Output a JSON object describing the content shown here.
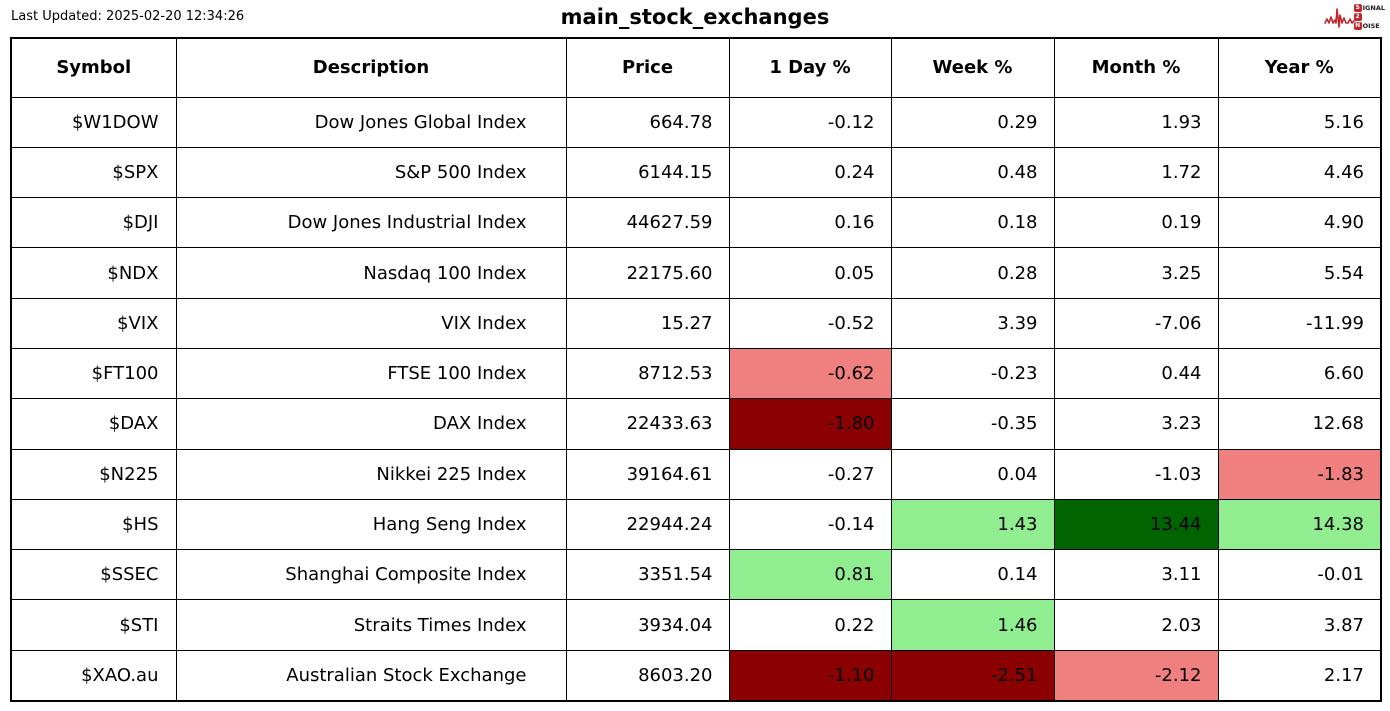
{
  "header": {
    "last_updated": "Last Updated: 2025-02-20 12:34:26",
    "title": "main_stock_exchanges",
    "logo": {
      "color": "#c0272d",
      "words": [
        {
          "boxed": "S",
          "rest": "IGNAL"
        },
        {
          "boxed": "2",
          "rest": ""
        },
        {
          "boxed": "N",
          "rest": "OISE"
        }
      ]
    }
  },
  "chart_data": {
    "type": "table",
    "title": "main_stock_exchanges",
    "columns": [
      "Symbol",
      "Description",
      "Price",
      "1 Day %",
      "Week %",
      "Month %",
      "Year %"
    ],
    "highlight_colors": {
      "light_red": "#f08080",
      "dark_red": "#8b0000",
      "light_green": "#90ee90",
      "dark_green": "#006400"
    },
    "rows": [
      {
        "symbol": "$W1DOW",
        "description": "Dow Jones Global Index",
        "price": 664.78,
        "day_pct": -0.12,
        "week_pct": 0.29,
        "month_pct": 1.93,
        "year_pct": 5.16,
        "bg": {}
      },
      {
        "symbol": "$SPX",
        "description": "S&P 500 Index",
        "price": 6144.15,
        "day_pct": 0.24,
        "week_pct": 0.48,
        "month_pct": 1.72,
        "year_pct": 4.46,
        "bg": {}
      },
      {
        "symbol": "$DJI",
        "description": "Dow Jones Industrial Index",
        "price": 44627.59,
        "day_pct": 0.16,
        "week_pct": 0.18,
        "month_pct": 0.19,
        "year_pct": 4.9,
        "bg": {}
      },
      {
        "symbol": "$NDX",
        "description": "Nasdaq 100 Index",
        "price": 22175.6,
        "day_pct": 0.05,
        "week_pct": 0.28,
        "month_pct": 3.25,
        "year_pct": 5.54,
        "bg": {}
      },
      {
        "symbol": "$VIX",
        "description": "VIX Index",
        "price": 15.27,
        "day_pct": -0.52,
        "week_pct": 3.39,
        "month_pct": -7.06,
        "year_pct": -11.99,
        "bg": {}
      },
      {
        "symbol": "$FT100",
        "description": "FTSE 100 Index",
        "price": 8712.53,
        "day_pct": -0.62,
        "week_pct": -0.23,
        "month_pct": 0.44,
        "year_pct": 6.6,
        "bg": {
          "day": "light_red"
        }
      },
      {
        "symbol": "$DAX",
        "description": "DAX Index",
        "price": 22433.63,
        "day_pct": -1.8,
        "week_pct": -0.35,
        "month_pct": 3.23,
        "year_pct": 12.68,
        "bg": {
          "day": "dark_red"
        }
      },
      {
        "symbol": "$N225",
        "description": "Nikkei 225 Index",
        "price": 39164.61,
        "day_pct": -0.27,
        "week_pct": 0.04,
        "month_pct": -1.03,
        "year_pct": -1.83,
        "bg": {
          "year": "light_red"
        }
      },
      {
        "symbol": "$HS",
        "description": "Hang Seng Index",
        "price": 22944.24,
        "day_pct": -0.14,
        "week_pct": 1.43,
        "month_pct": 13.44,
        "year_pct": 14.38,
        "bg": {
          "week": "light_green",
          "month": "dark_green",
          "year": "light_green"
        }
      },
      {
        "symbol": "$SSEC",
        "description": "Shanghai Composite Index",
        "price": 3351.54,
        "day_pct": 0.81,
        "week_pct": 0.14,
        "month_pct": 3.11,
        "year_pct": -0.01,
        "bg": {
          "day": "light_green"
        }
      },
      {
        "symbol": "$STI",
        "description": "Straits Times Index",
        "price": 3934.04,
        "day_pct": 0.22,
        "week_pct": 1.46,
        "month_pct": 2.03,
        "year_pct": 3.87,
        "bg": {
          "week": "light_green"
        }
      },
      {
        "symbol": "$XAO.au",
        "description": "Australian Stock Exchange",
        "price": 8603.2,
        "day_pct": -1.1,
        "week_pct": -2.51,
        "month_pct": -2.12,
        "year_pct": 2.17,
        "bg": {
          "day": "dark_red",
          "week": "dark_red",
          "month": "light_red"
        }
      }
    ]
  }
}
